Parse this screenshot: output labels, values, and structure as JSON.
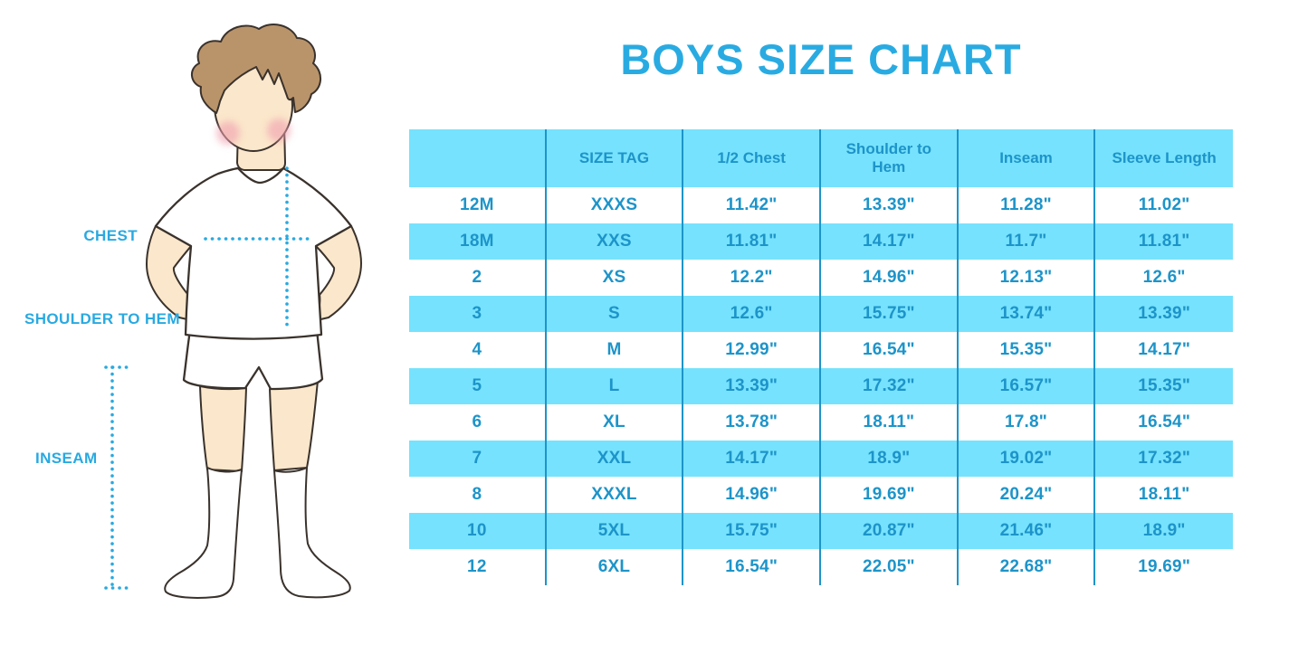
{
  "title": "BOYS SIZE CHART",
  "diagram": {
    "chest_label": "CHEST",
    "shoulder_to_hem_label": "SHOULDER TO HEM",
    "inseam_label": "INSEAM"
  },
  "colors": {
    "title_blue": "#29abe2",
    "label_blue": "#29a9e1",
    "table_text_blue": "#1d94c9",
    "row_cyan": "#76e2fd",
    "grid_line_blue": "#1d94c9",
    "dotted_line_blue": "#2aa9e0",
    "hair_brown": "#b9946b",
    "skin": "#fbe7cb",
    "cheek_pink": "#ef9fae",
    "outline": "#3a322c"
  },
  "chart_data": {
    "type": "table",
    "title": "BOYS SIZE CHART",
    "columns": [
      "",
      "SIZE TAG",
      "1/2 Chest",
      "Shoulder to Hem",
      "Inseam",
      "Sleeve Length"
    ],
    "rows": [
      [
        "12M",
        "XXXS",
        "11.42\"",
        "13.39\"",
        "11.28\"",
        "11.02\""
      ],
      [
        "18M",
        "XXS",
        "11.81\"",
        "14.17\"",
        "11.7\"",
        "11.81\""
      ],
      [
        "2",
        "XS",
        "12.2\"",
        "14.96\"",
        "12.13\"",
        "12.6\""
      ],
      [
        "3",
        "S",
        "12.6\"",
        "15.75\"",
        "13.74\"",
        "13.39\""
      ],
      [
        "4",
        "M",
        "12.99\"",
        "16.54\"",
        "15.35\"",
        "14.17\""
      ],
      [
        "5",
        "L",
        "13.39\"",
        "17.32\"",
        "16.57\"",
        "15.35\""
      ],
      [
        "6",
        "XL",
        "13.78\"",
        "18.11\"",
        "17.8\"",
        "16.54\""
      ],
      [
        "7",
        "XXL",
        "14.17\"",
        "18.9\"",
        "19.02\"",
        "17.32\""
      ],
      [
        "8",
        "XXXL",
        "14.96\"",
        "19.69\"",
        "20.24\"",
        "18.11\""
      ],
      [
        "10",
        "5XL",
        "15.75\"",
        "20.87\"",
        "21.46\"",
        "18.9\""
      ],
      [
        "12",
        "6XL",
        "16.54\"",
        "22.05\"",
        "22.68\"",
        "19.69\""
      ]
    ],
    "layout": {
      "header_background": "#76e2fd",
      "alternating_row_background": [
        "#ffffff",
        "#76e2fd"
      ],
      "column_separators": true,
      "row_separators": false
    }
  }
}
